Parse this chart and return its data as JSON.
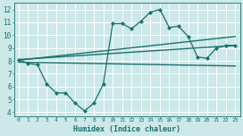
{
  "xlabel": "Humidex (Indice chaleur)",
  "bg_color": "#cce8e8",
  "grid_color": "#ffffff",
  "line_color": "#1a7070",
  "xlim": [
    -0.5,
    23.5
  ],
  "ylim": [
    3.7,
    12.5
  ],
  "yticks": [
    4,
    5,
    6,
    7,
    8,
    9,
    10,
    11,
    12
  ],
  "xticks": [
    0,
    1,
    2,
    3,
    4,
    5,
    6,
    7,
    8,
    9,
    10,
    11,
    12,
    13,
    14,
    15,
    16,
    17,
    18,
    19,
    20,
    21,
    22,
    23
  ],
  "main_x": [
    0,
    1,
    2,
    3,
    4,
    5,
    6,
    7,
    8,
    9,
    10,
    11,
    12,
    13,
    14,
    15,
    16,
    17,
    18,
    19,
    20,
    21,
    22,
    23
  ],
  "main_y": [
    8.1,
    7.8,
    7.7,
    6.2,
    5.5,
    5.5,
    4.7,
    4.1,
    4.7,
    6.2,
    10.9,
    10.9,
    10.5,
    11.1,
    11.8,
    12.0,
    10.6,
    10.7,
    9.9,
    8.3,
    8.2,
    9.0,
    9.2,
    9.2
  ],
  "trend1_x": [
    0,
    23
  ],
  "trend1_y": [
    8.1,
    9.2
  ],
  "trend2_x": [
    0,
    23
  ],
  "trend2_y": [
    8.05,
    9.9
  ],
  "trend3_x": [
    0,
    23
  ],
  "trend3_y": [
    7.9,
    7.6
  ]
}
